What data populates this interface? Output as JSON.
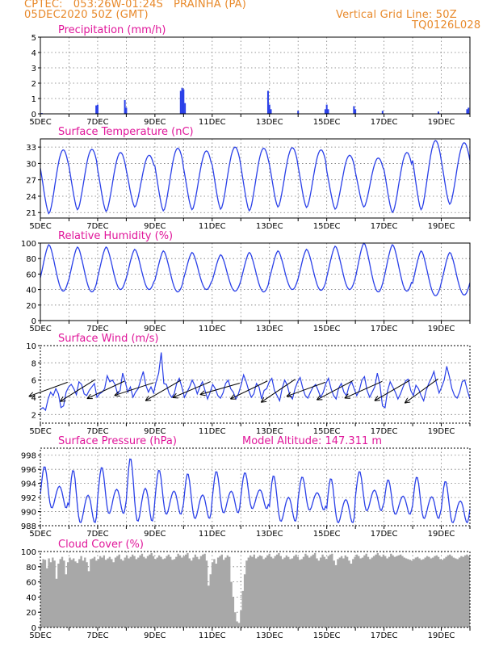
{
  "header": {
    "line1": "CPTEC:   053:26W-01:24S   PRAINHA (PA)",
    "line2": "05DEC2020 50Z (GMT)",
    "grid_line": "Vertical Grid Line: 50Z",
    "code": "TQ0126L028"
  },
  "colors": {
    "accent": "#e8892a",
    "title": "#e0169a",
    "series": "#2a40e8",
    "cloud": "#a8a8a8"
  },
  "chart_data": [
    {
      "id": "precip",
      "type": "bar",
      "title": "Precipitation (mm/h)",
      "ylim": [
        0,
        5
      ],
      "yticks": [
        0,
        1,
        2,
        3,
        4,
        5
      ],
      "x_range_days": [
        0,
        15
      ],
      "x_tick_labels": [
        "5DEC",
        "7DEC",
        "9DEC",
        "11DEC",
        "13DEC",
        "15DEC",
        "17DEC",
        "19DEC"
      ],
      "points": [
        [
          0.05,
          0.05
        ],
        [
          1.95,
          0.55
        ],
        [
          2.0,
          0.6
        ],
        [
          2.95,
          0.9
        ],
        [
          3.0,
          0.4
        ],
        [
          4.9,
          1.5
        ],
        [
          4.95,
          1.7
        ],
        [
          5.0,
          1.6
        ],
        [
          5.05,
          0.7
        ],
        [
          7.95,
          1.5
        ],
        [
          8.0,
          0.6
        ],
        [
          8.05,
          0.3
        ],
        [
          9.0,
          0.2
        ],
        [
          9.95,
          0.3
        ],
        [
          10.0,
          0.6
        ],
        [
          10.05,
          0.3
        ],
        [
          10.95,
          0.5
        ],
        [
          11.0,
          0.3
        ],
        [
          11.95,
          0.2
        ],
        [
          13.9,
          0.15
        ],
        [
          14.9,
          0.3
        ],
        [
          14.95,
          0.4
        ]
      ]
    },
    {
      "id": "temp",
      "type": "line",
      "title": "Surface Temperature (nC)",
      "ylim": [
        20,
        34.5
      ],
      "yticks": [
        21,
        24,
        27,
        30,
        33
      ],
      "x_range_days": [
        0,
        15
      ],
      "x_tick_labels": [
        "5DEC",
        "7DEC",
        "9DEC",
        "11DEC",
        "13DEC",
        "15DEC",
        "17DEC",
        "19DEC"
      ],
      "daily_min": [
        20.8,
        21.5,
        21.2,
        22.0,
        21.3,
        21.5,
        21.6,
        21.3,
        22.0,
        21.9,
        21.6,
        22.0,
        21.0,
        21.5,
        22.5
      ],
      "daily_max": [
        32.5,
        32.6,
        32.0,
        31.5,
        32.8,
        32.3,
        33.0,
        32.8,
        32.9,
        32.5,
        31.5,
        31.0,
        32.0,
        34.2,
        33.8
      ]
    },
    {
      "id": "rh",
      "type": "line",
      "title": "Relative Humidity (%)",
      "ylim": [
        0,
        100
      ],
      "yticks": [
        0,
        20,
        40,
        60,
        80,
        100
      ],
      "x_range_days": [
        0,
        15
      ],
      "x_tick_labels": [
        "5DEC",
        "7DEC",
        "9DEC",
        "11DEC",
        "13DEC",
        "15DEC",
        "17DEC",
        "19DEC"
      ],
      "daily_min": [
        38,
        37,
        40,
        40,
        37,
        40,
        38,
        37,
        40,
        39,
        40,
        37,
        38,
        32,
        33
      ],
      "daily_max": [
        98,
        95,
        95,
        92,
        90,
        88,
        85,
        88,
        90,
        92,
        96,
        100,
        98,
        90,
        88
      ]
    },
    {
      "id": "wind",
      "type": "line",
      "title": "Surface Wind (m/s)",
      "ylim": [
        1,
        10
      ],
      "yticks": [
        2,
        4,
        6,
        8,
        10
      ],
      "x_range_days": [
        0,
        15
      ],
      "x_tick_labels": [
        "5DEC",
        "7DEC",
        "9DEC",
        "11DEC",
        "13DEC",
        "15DEC",
        "17DEC",
        "19DEC"
      ],
      "values": [
        2.6,
        2.8,
        2.5,
        3.8,
        4.6,
        4.2,
        5.0,
        4.4,
        2.8,
        3.0,
        4.6,
        5.2,
        5.5,
        5.0,
        4.3,
        5.8,
        5.5,
        4.4,
        4.2,
        4.8,
        5.2,
        5.6,
        4.0,
        4.4,
        4.6,
        5.0,
        6.5,
        5.8,
        6.0,
        5.5,
        4.4,
        4.8,
        6.8,
        5.8,
        4.6,
        5.2,
        4.0,
        4.6,
        5.0,
        6.0,
        7.0,
        5.4,
        4.6,
        5.2,
        4.5,
        5.8,
        6.8,
        9.2,
        5.6,
        5.5,
        4.5,
        4.0,
        4.4,
        5.6,
        6.2,
        5.2,
        4.0,
        4.6,
        5.2,
        6.0,
        5.4,
        4.4,
        5.2,
        5.8,
        4.8,
        3.8,
        4.6,
        5.5,
        5.0,
        4.2,
        3.9,
        4.5,
        5.6,
        6.0,
        5.0,
        4.6,
        3.8,
        4.4,
        5.4,
        6.6,
        5.8,
        4.8,
        4.0,
        4.4,
        5.6,
        5.2,
        3.8,
        4.8,
        5.0,
        5.8,
        6.2,
        4.8,
        4.2,
        3.6,
        5.0,
        6.0,
        5.4,
        4.2,
        3.8,
        5.0,
        5.8,
        6.3,
        5.1,
        4.2,
        3.9,
        4.6,
        5.2,
        5.5,
        4.8,
        4.0,
        4.6,
        5.6,
        6.2,
        5.0,
        4.2,
        3.8,
        5.1,
        5.6,
        4.6,
        4.2,
        5.3,
        5.8,
        5.0,
        4.2,
        4.8,
        6.0,
        6.4,
        4.8,
        4.0,
        4.6,
        5.2,
        6.8,
        5.5,
        3.0,
        2.8,
        4.8,
        5.8,
        5.2,
        4.6,
        3.8,
        4.4,
        5.2,
        5.9,
        6.1,
        4.8,
        4.2,
        5.4,
        5.0,
        4.2,
        3.6,
        4.8,
        5.6,
        6.2,
        7.0,
        5.6,
        4.5,
        5.2,
        6.0,
        7.6,
        6.4,
        5.0,
        4.2,
        3.9,
        4.6,
        5.8,
        6.0,
        4.8,
        3.8
      ],
      "arrows_t": [
        0.5,
        1.5,
        2.5,
        3.5,
        4.5,
        5.5,
        6.5,
        7.5,
        8.5,
        9.5,
        10.5,
        11.5,
        12.5,
        13.5
      ],
      "arrows_angle_deg": [
        200,
        212,
        205,
        198,
        210,
        203,
        196,
        206,
        214,
        200,
        208,
        204,
        210,
        216
      ]
    },
    {
      "id": "pressure",
      "type": "line",
      "title": "Surface Pressure (hPa)",
      "annotation": "Model Altitude: 147.311  m",
      "ylim": [
        988,
        999
      ],
      "yticks": [
        988,
        990,
        992,
        994,
        996,
        998
      ],
      "x_range_days": [
        0,
        15
      ],
      "x_tick_labels": [
        "5DEC",
        "7DEC",
        "9DEC",
        "11DEC",
        "13DEC",
        "15DEC",
        "17DEC",
        "19DEC"
      ],
      "daily_low": [
        990.5,
        988.4,
        989.7,
        988.6,
        989.6,
        989.0,
        989.8,
        990.4,
        988.6,
        990.2,
        988.4,
        990.1,
        989.6,
        989.0,
        988.4
      ],
      "daily_high": [
        996.5,
        996.0,
        996.4,
        997.7,
        996.0,
        995.5,
        995.8,
        995.6,
        995.2,
        995.0,
        994.8,
        995.8,
        994.6,
        995.0,
        994.4
      ]
    },
    {
      "id": "cloud",
      "type": "area",
      "title": "Cloud Cover (%)",
      "ylim": [
        0,
        100
      ],
      "yticks": [
        0,
        20,
        40,
        60,
        80,
        100
      ],
      "x_range_days": [
        0,
        15
      ],
      "x_tick_labels": [
        "5DEC",
        "7DEC",
        "9DEC",
        "11DEC",
        "13DEC",
        "15DEC",
        "17DEC",
        "19DEC"
      ],
      "values": [
        85,
        90,
        89,
        78,
        91,
        86,
        92,
        88,
        64,
        84,
        90,
        93,
        88,
        70,
        86,
        92,
        89,
        91,
        87,
        85,
        90,
        94,
        88,
        92,
        86,
        74,
        90,
        91,
        93,
        88,
        90,
        94,
        92,
        95,
        89,
        91,
        93,
        90,
        86,
        92,
        94,
        96,
        90,
        88,
        92,
        95,
        91,
        93,
        96,
        94,
        90,
        92,
        95,
        97,
        93,
        91,
        94,
        96,
        98,
        94,
        90,
        92,
        95,
        93,
        90,
        91,
        94,
        96,
        93,
        89,
        90,
        93,
        97,
        95,
        92,
        94,
        96,
        98,
        91,
        88,
        92,
        96,
        93,
        90,
        94,
        96,
        97,
        88,
        55,
        70,
        86,
        90,
        84,
        92,
        94,
        96,
        89,
        92,
        95,
        93,
        60,
        40,
        20,
        8,
        6,
        22,
        48,
        70,
        88,
        92,
        95,
        93,
        96,
        91,
        93,
        95,
        94,
        90,
        92,
        95,
        97,
        93,
        91,
        94,
        96,
        98,
        94,
        90,
        92,
        95,
        93,
        90,
        91,
        94,
        96,
        93,
        89,
        90,
        93,
        97,
        95,
        92,
        94,
        96,
        98,
        91,
        88,
        92,
        96,
        93,
        90,
        94,
        96,
        97,
        88,
        82,
        90,
        92,
        94,
        91,
        95,
        93,
        88,
        84,
        90,
        93,
        96,
        94,
        91,
        92,
        95,
        97,
        93,
        90,
        92,
        94,
        96,
        98,
        95,
        93,
        96,
        94,
        91,
        93,
        97,
        95,
        93,
        94,
        95,
        96,
        94,
        92,
        91,
        90,
        89,
        88,
        90,
        92,
        93,
        91,
        89,
        90,
        92,
        94,
        93,
        91,
        92,
        94,
        95,
        93,
        90,
        89,
        91,
        93,
        95,
        96,
        94,
        92,
        91,
        90,
        92,
        94,
        93,
        95,
        96,
        94
      ]
    }
  ]
}
